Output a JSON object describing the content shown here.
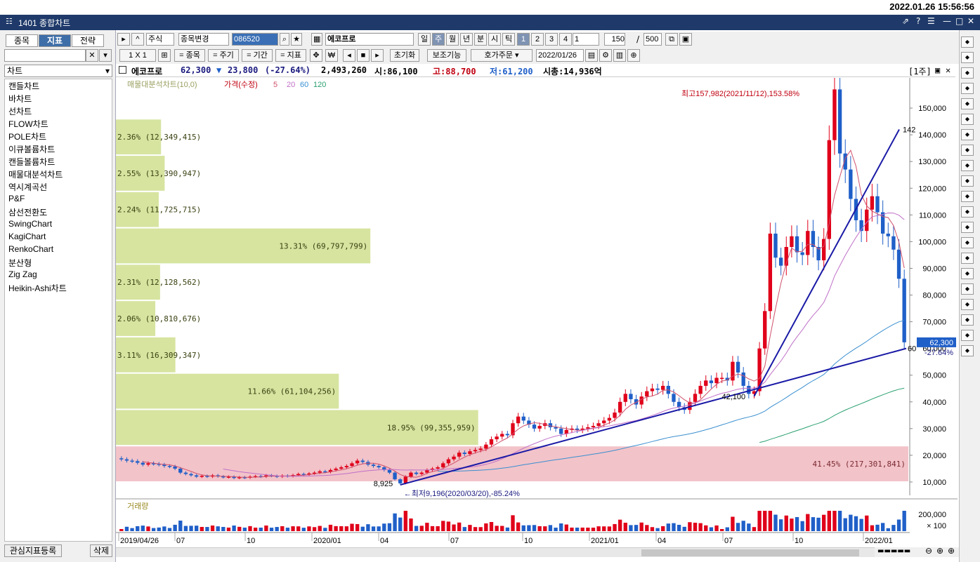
{
  "clock": "2022.01.26 15:56:56",
  "window": {
    "title": "1401 종합차트",
    "icon": "window-menu-icon",
    "controls": [
      "⇗",
      "?",
      "☰",
      "—",
      "□",
      "✕"
    ]
  },
  "left": {
    "tabs": [
      {
        "label": "종목",
        "active": false
      },
      {
        "label": "지표",
        "active": true
      },
      {
        "label": "전략",
        "active": false
      }
    ],
    "search_value": "",
    "search_clear": "✕",
    "dropdown": "▾",
    "select_label": "차트",
    "items": [
      "캔들차트",
      "바차트",
      "선차트",
      "FLOW차트",
      "POLE차트",
      "이큐볼륨차트",
      "캔들볼륨차트",
      "매물대분석차트",
      "역시계곡선",
      "P&F",
      "삼선전환도",
      "SwingChart",
      "KagiChart",
      "RenkoChart",
      "분산형",
      "Zig Zag",
      "Heikin-Ashi차트"
    ],
    "footer_register": "관심지표등록",
    "footer_delete": "삭제"
  },
  "toolbar1": {
    "market": "주식",
    "change": "종목변경",
    "code": "086520",
    "name": "에코프로",
    "periods": [
      {
        "label": "일",
        "sel": false
      },
      {
        "label": "주",
        "sel": true
      },
      {
        "label": "월",
        "sel": false
      },
      {
        "label": "년",
        "sel": false
      },
      {
        "label": "분",
        "sel": false
      },
      {
        "label": "시",
        "sel": false
      },
      {
        "label": "틱",
        "sel": false
      }
    ],
    "multipliers": [
      {
        "label": "1",
        "sel": true
      },
      {
        "label": "2",
        "sel": false
      },
      {
        "label": "3",
        "sel": false
      },
      {
        "label": "4",
        "sel": false
      }
    ],
    "interval_value": "1",
    "count": "150",
    "slash": "/",
    "total": "500"
  },
  "toolbar2": {
    "layout": "1 X 1",
    "btns": [
      "= 종목",
      "= 주기",
      "= 기간",
      "= 지표"
    ],
    "reset": "초기화",
    "aux": "보조기능",
    "order": "호가주문",
    "date": "2022/01/26"
  },
  "info": {
    "name": "에코프로",
    "price": "62,300",
    "arrow": "▼",
    "change": "23,800",
    "rate": "(-27.64%)",
    "volume": "2,493,260",
    "open": "시:86,100",
    "high": "고:88,700",
    "low": "저:61,200",
    "mcap": "시총:14,936억",
    "period_tag": "[1주]"
  },
  "colors": {
    "up": "#e0001a",
    "down": "#1f5fc8",
    "trend": "#1a1aa6",
    "vp": "#cfdf8f",
    "vp_max": "#f0b8c0",
    "ma5": "#d0506a",
    "ma20": "#c070c8",
    "ma60": "#3a8fd0",
    "ma120": "#2aa070"
  },
  "chart_data": {
    "type": "candlestick",
    "title": "",
    "legend": {
      "vp": "매물대분석차트(10,0)",
      "price": "가격(수정)",
      "ma": [
        "5",
        "20",
        "60",
        "120"
      ]
    },
    "y_axis": {
      "min": 5000,
      "max": 160000,
      "ticks": [
        10000,
        20000,
        30000,
        40000,
        50000,
        60000,
        70000,
        80000,
        90000,
        100000,
        110000,
        120000,
        130000,
        140000,
        150000
      ],
      "tick_labels": [
        "10,000",
        "20,000",
        "30,000",
        "40,000",
        "50,000",
        "60,000",
        "70,000",
        "80,000",
        "90,000",
        "100,000",
        "110,000",
        "120,000",
        "130,000",
        "140,000",
        "150,000"
      ]
    },
    "x_labels": [
      "2019/04/26",
      "07",
      "10",
      "2020/01",
      "04",
      "07",
      "10",
      "2021/01",
      "04",
      "07",
      "10",
      "2022/01"
    ],
    "volume_profile": [
      {
        "label": "2.36% (12,349,415)",
        "pct": 2.36
      },
      {
        "label": "2.55% (13,390,947)",
        "pct": 2.55
      },
      {
        "label": "2.24% (11,725,715)",
        "pct": 2.24
      },
      {
        "label": "13.31% (69,797,799)",
        "pct": 13.31
      },
      {
        "label": "2.31% (12,128,562)",
        "pct": 2.31
      },
      {
        "label": "2.06% (10,810,676)",
        "pct": 2.06
      },
      {
        "label": "3.11% (16,309,347)",
        "pct": 3.11
      },
      {
        "label": "11.66% (61,104,256)",
        "pct": 11.66
      },
      {
        "label": "18.95% (99,355,959)",
        "pct": 18.95
      },
      {
        "label": "41.45% (217,301,841)",
        "pct": 41.45
      }
    ],
    "closes": [
      18500,
      18000,
      17800,
      17200,
      16500,
      17000,
      16800,
      16500,
      16000,
      15800,
      15000,
      13500,
      13000,
      12500,
      12000,
      12300,
      12000,
      12500,
      12100,
      11800,
      12000,
      11500,
      11800,
      11600,
      12000,
      12200,
      12000,
      12500,
      12300,
      12000,
      12400,
      12200,
      12600,
      13000,
      12800,
      13200,
      13500,
      14000,
      13800,
      14500,
      15000,
      15500,
      16000,
      17000,
      18000,
      17500,
      16500,
      16000,
      15500,
      14500,
      13500,
      11000,
      9500,
      12000,
      13500,
      13000,
      13500,
      14500,
      15000,
      15500,
      17000,
      18500,
      19500,
      21000,
      20500,
      21500,
      22000,
      22500,
      24000,
      26000,
      27000,
      28000,
      27500,
      32000,
      34500,
      33000,
      31500,
      30000,
      31000,
      32000,
      30500,
      30000,
      28000,
      29500,
      30000,
      29500,
      30000,
      30500,
      31000,
      32000,
      33000,
      34000,
      36000,
      40000,
      43000,
      41000,
      39000,
      42000,
      44000,
      45000,
      44500,
      46000,
      43000,
      40000,
      38000,
      37000,
      40000,
      43000,
      46000,
      48000,
      47000,
      49000,
      49000,
      48000,
      55000,
      51000,
      46000,
      43000,
      44000,
      60000,
      74000,
      103000,
      94000,
      91000,
      98000,
      102000,
      96000,
      95000,
      104000,
      98000,
      93000,
      101000,
      138000,
      157000,
      133000,
      127000,
      116000,
      108000,
      104000,
      112000,
      117000,
      111000,
      103000,
      102000,
      97000,
      86100,
      62300
    ],
    "annotations": {
      "high": "최고157,982(2021/11/12),153.58%",
      "low": "최저9,196(2020/03/20),-85.24%",
      "low_point": "8,925",
      "mid_point": "42,100",
      "line1_end": "142",
      "line2_end": "60",
      "last": "62,300",
      "last_rate": "-27.64%"
    },
    "volume_panel": {
      "label": "거래량",
      "scale_top": "200,000",
      "scale_unit": "× 100"
    }
  }
}
